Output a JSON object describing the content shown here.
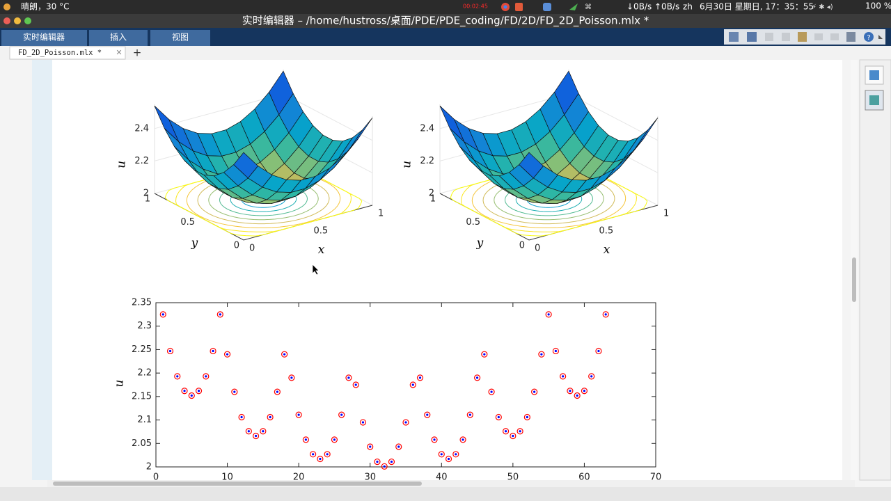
{
  "menubar": {
    "weather": "晴朗，30 °C",
    "recording": "00:02:45",
    "net_down": "↓0B/s",
    "net_up": "↑0B/s",
    "lang": "zh",
    "datetime": "6月30日 星期日, 17：35：55",
    "battery": "100 %"
  },
  "window_title": "实时编辑器 – /home/hustross/桌面/PDE/PDE_coding/FD/2D/FD_2D_Poisson.mlx *",
  "tabs": [
    "实时编辑器",
    "插入",
    "视图"
  ],
  "file_tab": "FD_2D_Poisson.mlx *",
  "surface_plots": [
    {
      "xlabel": "x",
      "ylabel": "y",
      "zlabel": "u",
      "xticks": [
        0,
        0.5,
        1
      ],
      "yticks": [
        0,
        0.5,
        1
      ],
      "zticks": [
        2,
        2.2,
        2.4
      ]
    },
    {
      "xlabel": "x",
      "ylabel": "y",
      "zlabel": "u",
      "xticks": [
        0,
        0.5,
        1
      ],
      "yticks": [
        0,
        0.5,
        1
      ],
      "zticks": [
        2,
        2.2,
        2.4
      ]
    }
  ],
  "chart_data": {
    "type": "scatter",
    "ylabel": "u",
    "x": [
      1,
      2,
      3,
      4,
      5,
      6,
      7,
      8,
      9,
      10,
      11,
      12,
      13,
      14,
      15,
      16,
      17,
      18,
      19,
      20,
      21,
      22,
      23,
      24,
      25,
      26,
      27,
      28,
      29,
      30,
      31,
      32,
      33,
      34,
      35,
      36,
      37,
      38,
      39,
      40,
      41,
      42,
      43,
      44,
      45,
      46,
      47,
      48,
      49,
      50,
      51,
      52,
      53,
      54,
      55,
      56,
      57,
      58,
      59,
      60,
      61,
      62,
      63
    ],
    "values": [
      2.325,
      2.247,
      2.193,
      2.162,
      2.152,
      2.162,
      2.193,
      2.247,
      2.325,
      2.24,
      2.16,
      2.106,
      2.076,
      2.066,
      2.076,
      2.106,
      2.16,
      2.24,
      2.19,
      2.111,
      2.058,
      2.027,
      2.017,
      2.027,
      2.058,
      2.111,
      2.19,
      2.175,
      2.095,
      2.043,
      2.011,
      2.001,
      2.011,
      2.043,
      2.095,
      2.175,
      2.19,
      2.111,
      2.058,
      2.027,
      2.017,
      2.027,
      2.058,
      2.111,
      2.19,
      2.24,
      2.16,
      2.106,
      2.076,
      2.066,
      2.076,
      2.106,
      2.16,
      2.24,
      2.325,
      2.247,
      2.193,
      2.162,
      2.152,
      2.162,
      2.193,
      2.247,
      2.325
    ],
    "color": "#ff0000",
    "dot_color": "#0000ff",
    "xlim": [
      0,
      70
    ],
    "ylim": [
      2,
      2.35
    ],
    "xticks": [
      0,
      10,
      20,
      30,
      40,
      50,
      60,
      70
    ],
    "yticks": [
      2,
      2.05,
      2.1,
      2.15,
      2.2,
      2.25,
      2.3,
      2.35
    ]
  }
}
